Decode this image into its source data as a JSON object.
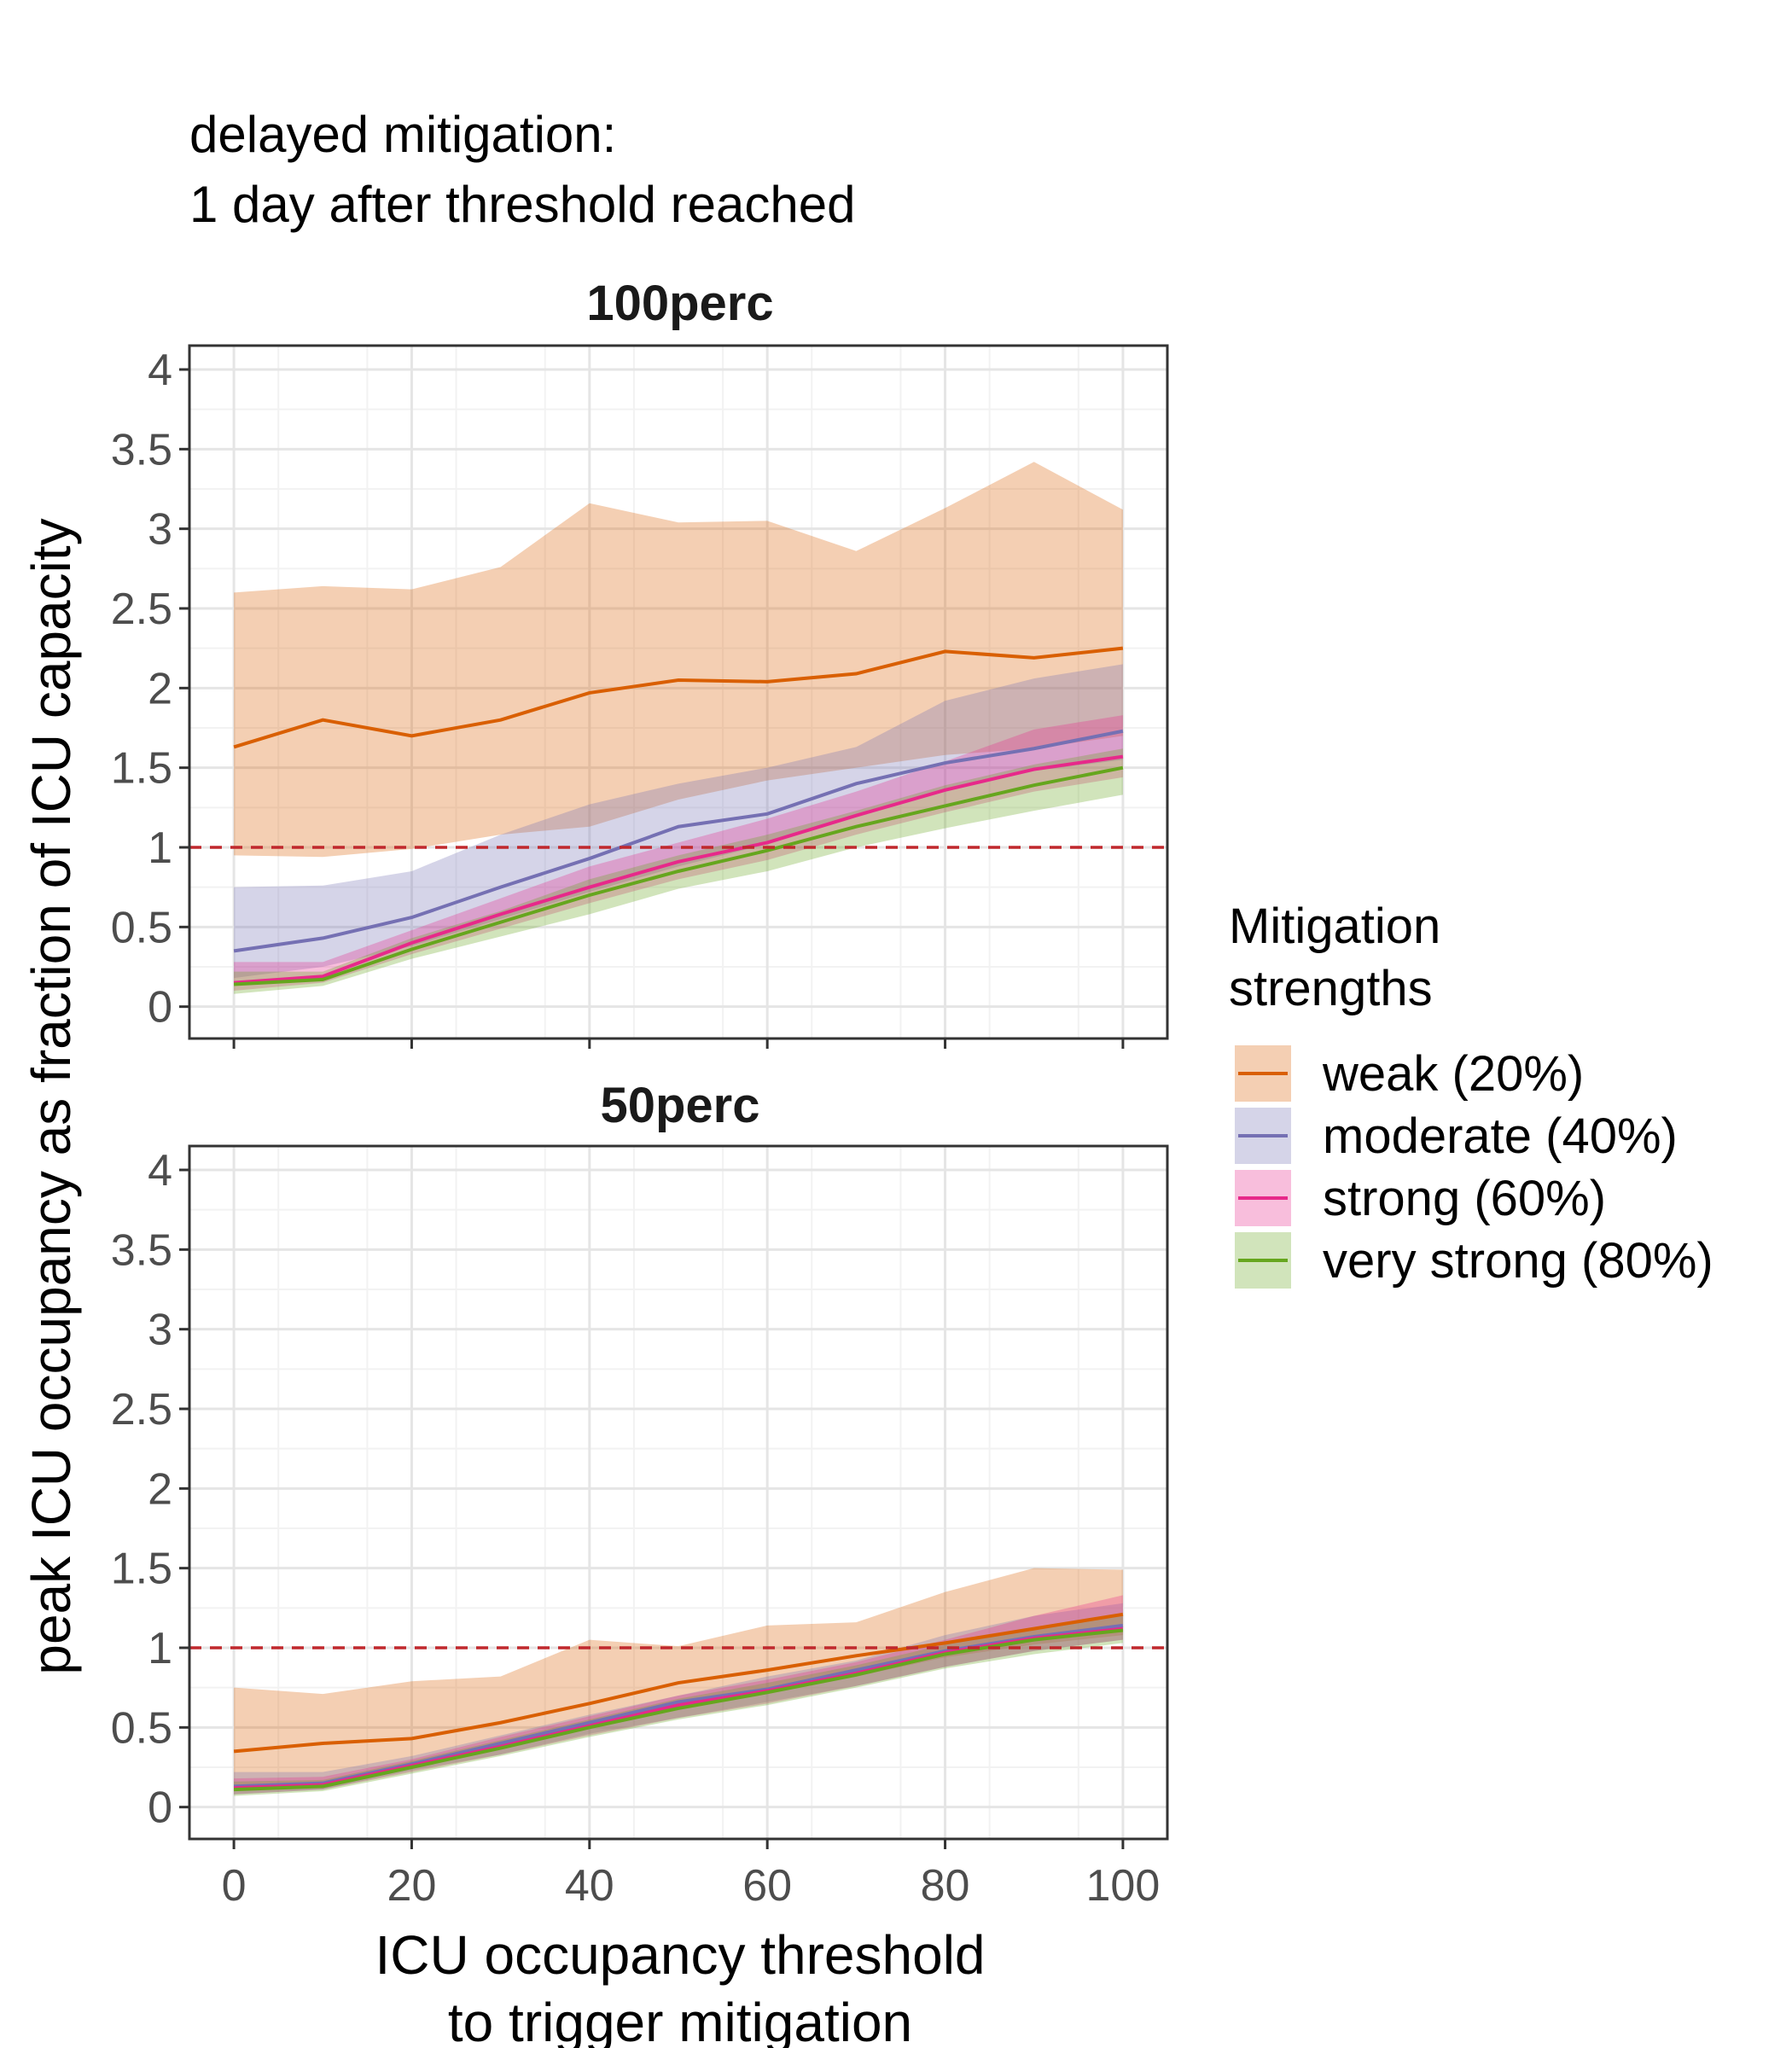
{
  "title": {
    "line1": "delayed mitigation:",
    "line2": "1 day after threshold reached"
  },
  "xlabel": {
    "line1": "ICU occupancy threshold",
    "line2": "to trigger mitigation"
  },
  "ylabel": "peak ICU occupancy as fraction of ICU capacity",
  "legend": {
    "title_line1": "Mitigation",
    "title_line2": "strengths"
  },
  "chart_data": {
    "type": "line",
    "x": [
      0,
      10,
      20,
      30,
      40,
      50,
      60,
      70,
      80,
      90,
      100
    ],
    "xlim": [
      -5,
      105
    ],
    "ylim": [
      -0.2,
      4.15
    ],
    "xticks": [
      0,
      20,
      40,
      60,
      80,
      100
    ],
    "yticks": [
      0,
      0.5,
      1,
      1.5,
      2,
      2.5,
      3,
      3.5,
      4
    ],
    "ytick_labels": [
      "0",
      "0.5",
      "1",
      "1.5",
      "2",
      "2.5",
      "3",
      "3.5",
      "4"
    ],
    "reference_line": {
      "y": 1,
      "style": "dashed",
      "color": "#c0282d"
    },
    "grid": true,
    "legend_position": "right",
    "series_meta": [
      {
        "name": "weak (20%)",
        "color": "#d95f02"
      },
      {
        "name": "moderate (40%)",
        "color": "#7570b3"
      },
      {
        "name": "strong (60%)",
        "color": "#e7298a"
      },
      {
        "name": "very strong (80%)",
        "color": "#66a61e"
      }
    ],
    "panels": [
      {
        "label": "100perc",
        "series": [
          {
            "values": [
              1.63,
              1.8,
              1.7,
              1.8,
              1.97,
              2.05,
              2.04,
              2.09,
              2.23,
              2.19,
              2.25
            ],
            "lower": [
              0.95,
              0.94,
              0.99,
              1.08,
              1.13,
              1.3,
              1.42,
              1.5,
              1.58,
              1.62,
              1.7
            ],
            "upper": [
              2.6,
              2.64,
              2.62,
              2.76,
              3.16,
              3.04,
              3.05,
              2.86,
              3.13,
              3.42,
              3.12
            ]
          },
          {
            "values": [
              0.35,
              0.43,
              0.56,
              0.75,
              0.93,
              1.13,
              1.21,
              1.4,
              1.53,
              1.62,
              1.73
            ],
            "lower": [
              0.18,
              0.25,
              0.38,
              0.55,
              0.72,
              0.88,
              1.02,
              1.2,
              1.35,
              1.48,
              1.55
            ],
            "upper": [
              0.75,
              0.76,
              0.85,
              1.08,
              1.27,
              1.4,
              1.5,
              1.63,
              1.92,
              2.06,
              2.15
            ]
          },
          {
            "values": [
              0.15,
              0.19,
              0.4,
              0.58,
              0.75,
              0.91,
              1.03,
              1.2,
              1.36,
              1.49,
              1.57
            ],
            "lower": [
              0.1,
              0.15,
              0.33,
              0.49,
              0.65,
              0.8,
              0.92,
              1.08,
              1.22,
              1.35,
              1.44
            ],
            "upper": [
              0.28,
              0.28,
              0.48,
              0.68,
              0.88,
              1.03,
              1.18,
              1.35,
              1.54,
              1.74,
              1.83
            ]
          },
          {
            "values": [
              0.14,
              0.17,
              0.36,
              0.53,
              0.7,
              0.85,
              0.98,
              1.13,
              1.26,
              1.39,
              1.5
            ],
            "lower": [
              0.08,
              0.13,
              0.3,
              0.44,
              0.58,
              0.74,
              0.85,
              1.0,
              1.12,
              1.23,
              1.33
            ],
            "upper": [
              0.22,
              0.22,
              0.43,
              0.6,
              0.8,
              0.95,
              1.08,
              1.23,
              1.39,
              1.52,
              1.62
            ]
          }
        ]
      },
      {
        "label": "50perc",
        "series": [
          {
            "values": [
              0.35,
              0.4,
              0.43,
              0.53,
              0.65,
              0.78,
              0.86,
              0.95,
              1.03,
              1.12,
              1.21
            ],
            "lower": [
              0.1,
              0.15,
              0.28,
              0.4,
              0.52,
              0.62,
              0.72,
              0.82,
              0.94,
              1.02,
              1.08
            ],
            "upper": [
              0.75,
              0.71,
              0.79,
              0.82,
              1.05,
              1.01,
              1.14,
              1.16,
              1.35,
              1.5,
              1.49
            ]
          },
          {
            "values": [
              0.13,
              0.15,
              0.27,
              0.4,
              0.53,
              0.66,
              0.74,
              0.86,
              0.98,
              1.07,
              1.14
            ],
            "lower": [
              0.08,
              0.11,
              0.23,
              0.33,
              0.46,
              0.56,
              0.66,
              0.76,
              0.88,
              0.98,
              1.05
            ],
            "upper": [
              0.22,
              0.22,
              0.32,
              0.45,
              0.58,
              0.7,
              0.82,
              0.92,
              1.08,
              1.2,
              1.28
            ]
          },
          {
            "values": [
              0.12,
              0.14,
              0.26,
              0.38,
              0.51,
              0.64,
              0.73,
              0.84,
              0.97,
              1.06,
              1.12
            ],
            "lower": [
              0.08,
              0.11,
              0.22,
              0.33,
              0.45,
              0.56,
              0.65,
              0.76,
              0.88,
              0.98,
              1.05
            ],
            "upper": [
              0.18,
              0.19,
              0.3,
              0.44,
              0.57,
              0.7,
              0.8,
              0.91,
              1.05,
              1.2,
              1.33
            ]
          },
          {
            "values": [
              0.11,
              0.13,
              0.25,
              0.37,
              0.5,
              0.62,
              0.72,
              0.83,
              0.96,
              1.05,
              1.11
            ],
            "lower": [
              0.07,
              0.1,
              0.21,
              0.32,
              0.44,
              0.55,
              0.64,
              0.75,
              0.87,
              0.96,
              1.03
            ],
            "upper": [
              0.16,
              0.17,
              0.29,
              0.42,
              0.55,
              0.68,
              0.78,
              0.89,
              1.02,
              1.12,
              1.2
            ]
          }
        ]
      }
    ]
  }
}
